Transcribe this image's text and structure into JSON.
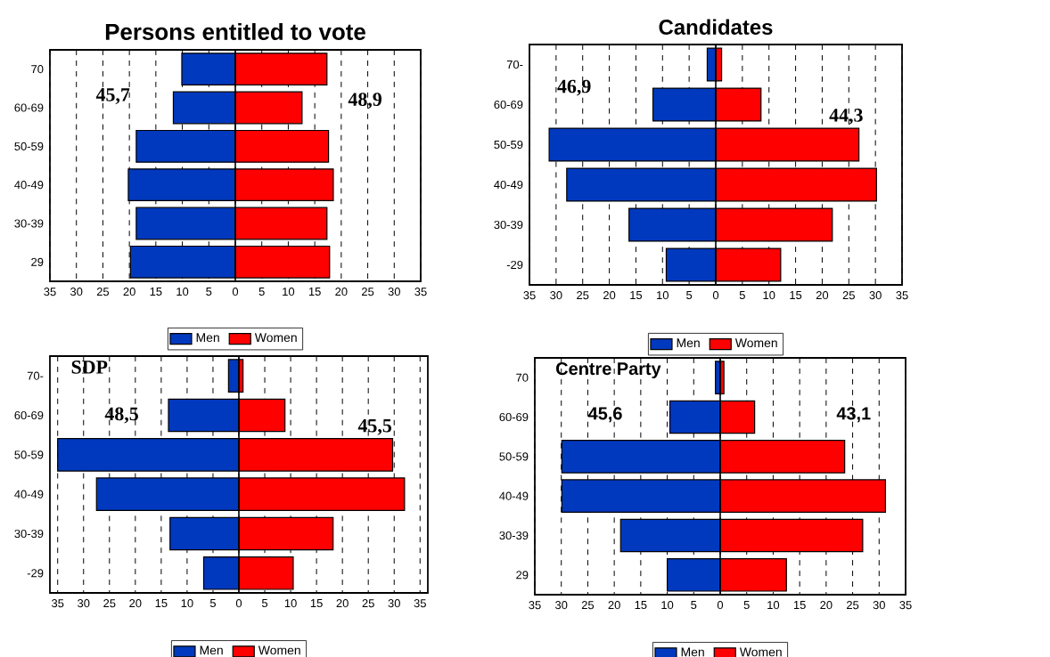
{
  "chart_data": [
    {
      "type": "bar",
      "orientation": "horizontal",
      "stacked": true,
      "title": "Persons entitled to vote",
      "categories": [
        "70",
        "60-69",
        "50-59",
        "40-49",
        "30-39",
        "29"
      ],
      "series": [
        {
          "name": "Men",
          "color": "#0039be",
          "values": [
            -10.1,
            -11.7,
            -18.7,
            -20.2,
            -18.7,
            -19.8
          ]
        },
        {
          "name": "Women",
          "color": "#ff0000",
          "values": [
            17.3,
            12.6,
            17.6,
            18.5,
            17.3,
            17.8
          ]
        }
      ],
      "xlim": [
        -35,
        35
      ],
      "xticks": [
        {
          "value": -35,
          "label": "35"
        },
        {
          "value": -30,
          "label": "30"
        },
        {
          "value": -25,
          "label": "25"
        },
        {
          "value": -20,
          "label": "20"
        },
        {
          "value": -15,
          "label": "15"
        },
        {
          "value": -10,
          "label": "10"
        },
        {
          "value": -5,
          "label": "5"
        },
        0,
        5,
        10,
        15,
        20,
        25,
        30,
        35
      ],
      "grid": "x",
      "legend": "bottom",
      "annotations": [
        "45,7",
        "48,9"
      ]
    },
    {
      "type": "bar",
      "orientation": "horizontal",
      "stacked": true,
      "title": "Candidates",
      "categories": [
        "70-",
        "60-69",
        "50-59",
        "40-49",
        "30-39",
        "-29"
      ],
      "series": [
        {
          "name": "Men",
          "color": "#0039be",
          "values": [
            -1.6,
            -11.8,
            -31.3,
            -28.0,
            -16.3,
            -9.3
          ]
        },
        {
          "name": "Women",
          "color": "#ff0000",
          "values": [
            1.1,
            8.5,
            26.9,
            30.2,
            21.9,
            12.2
          ]
        }
      ],
      "xlim": [
        -35,
        35
      ],
      "xticks": [
        {
          "value": -35,
          "label": "35"
        },
        {
          "value": -30,
          "label": "30"
        },
        {
          "value": -25,
          "label": "25"
        },
        {
          "value": -20,
          "label": "20"
        },
        {
          "value": -15,
          "label": "15"
        },
        {
          "value": -10,
          "label": "10"
        },
        {
          "value": -5,
          "label": "5"
        },
        0,
        5,
        10,
        15,
        20,
        25,
        30,
        35
      ],
      "grid": "x",
      "legend": "bottom",
      "annotations": [
        "46,9",
        "44,3"
      ]
    },
    {
      "type": "bar",
      "orientation": "horizontal",
      "stacked": true,
      "title": "SDP",
      "categories": [
        "70-",
        "60-69",
        "50-59",
        "40-49",
        "30-39",
        "-29"
      ],
      "series": [
        {
          "name": "Men",
          "color": "#0039be",
          "values": [
            -2.0,
            -13.6,
            -35.0,
            -27.5,
            -13.3,
            -6.8
          ]
        },
        {
          "name": "Women",
          "color": "#ff0000",
          "values": [
            0.8,
            8.9,
            29.7,
            32.0,
            18.2,
            10.5
          ]
        }
      ],
      "xlim": [
        -36.5,
        36.5
      ],
      "xticks": [
        {
          "value": -35,
          "label": "35"
        },
        {
          "value": -30,
          "label": "30"
        },
        {
          "value": -25,
          "label": "25"
        },
        {
          "value": -20,
          "label": "20"
        },
        {
          "value": -15,
          "label": "15"
        },
        {
          "value": -10,
          "label": "10"
        },
        {
          "value": -5,
          "label": "5"
        },
        0,
        5,
        10,
        15,
        20,
        25,
        30,
        35
      ],
      "grid": "x",
      "legend": "bottom",
      "annotations": [
        "48,5",
        "45,5"
      ]
    },
    {
      "type": "bar",
      "orientation": "horizontal",
      "stacked": true,
      "title": "Centre Party",
      "categories": [
        "70",
        "60-69",
        "50-59",
        "40-49",
        "30-39",
        "29"
      ],
      "series": [
        {
          "name": "Men",
          "color": "#0039be",
          "values": [
            -0.9,
            -9.5,
            -29.9,
            -29.9,
            -18.8,
            -10.0
          ]
        },
        {
          "name": "Women",
          "color": "#ff0000",
          "values": [
            0.7,
            6.5,
            23.5,
            31.2,
            26.9,
            12.5
          ]
        }
      ],
      "xlim": [
        -35,
        35
      ],
      "xticks": [
        {
          "value": -35,
          "label": "35"
        },
        {
          "value": -30,
          "label": "30"
        },
        {
          "value": -25,
          "label": "25"
        },
        {
          "value": -20,
          "label": "20"
        },
        {
          "value": -15,
          "label": "15"
        },
        {
          "value": -10,
          "label": "10"
        },
        {
          "value": -5,
          "label": "5"
        },
        0,
        5,
        10,
        15,
        20,
        25,
        30,
        35
      ],
      "grid": "x",
      "legend": "bottom",
      "annotations": [
        "45,6",
        "43,1"
      ]
    }
  ]
}
